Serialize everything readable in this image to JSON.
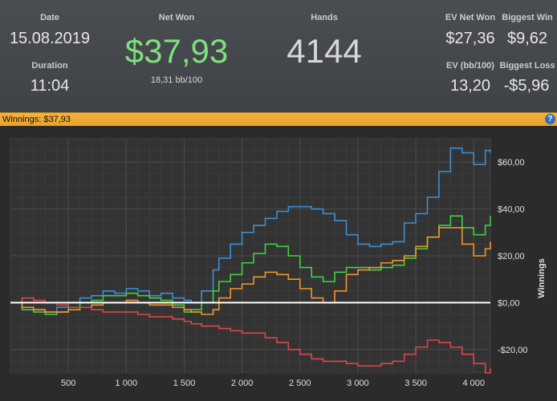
{
  "header": {
    "date_label": "Date",
    "date_value": "15.08.2019",
    "duration_label": "Duration",
    "duration_value": "11:04",
    "net_won_label": "Net Won",
    "net_won_value": "$37,93",
    "bb_rate": "18,31 bb/100",
    "hands_label": "Hands",
    "hands_value": "4144",
    "ev_net_won_label": "EV Net Won",
    "ev_net_won_value": "$27,36",
    "biggest_win_label": "Biggest Win",
    "biggest_win_value": "$9,62",
    "ev_bb_label": "EV (bb/100)",
    "ev_bb_value": "13,20",
    "biggest_loss_label": "Biggest Loss",
    "biggest_loss_value": "-$5,96"
  },
  "bar": {
    "text": "Winnings: $37,93",
    "help": "?"
  },
  "colors": {
    "blue": "#3b8fd6",
    "green": "#3fd33f",
    "orange": "#f0962a",
    "red": "#e04646",
    "zero": "#ffffff",
    "accent": "#f5b340"
  },
  "chart_data": {
    "type": "line",
    "xlim": [
      0,
      4144
    ],
    "ylim": [
      -30,
      70
    ],
    "xticks": [
      500,
      1000,
      1500,
      2000,
      2500,
      3000,
      3500,
      4000
    ],
    "xtick_labels": [
      "500",
      "1 000",
      "1 500",
      "2 000",
      "2 500",
      "3 000",
      "3 500",
      "4 000"
    ],
    "yticks": [
      -20,
      0,
      20,
      40,
      60
    ],
    "ytick_labels": [
      "-$20,00",
      "$0,00",
      "$20,00",
      "$40,00",
      "$60,00"
    ],
    "ylabel": "Winnings",
    "grid": true,
    "series": [
      {
        "color_key": "blue",
        "x": [
          0,
          100,
          200,
          300,
          400,
          500,
          600,
          700,
          800,
          900,
          1000,
          1100,
          1200,
          1300,
          1400,
          1500,
          1560,
          1650,
          1750,
          1800,
          1900,
          2000,
          2100,
          2200,
          2300,
          2400,
          2500,
          2600,
          2700,
          2800,
          2900,
          3000,
          3100,
          3200,
          3300,
          3400,
          3500,
          3600,
          3700,
          3800,
          3900,
          4000,
          4100,
          4144
        ],
        "y": [
          0,
          -2,
          -3,
          -4,
          -2,
          0,
          2,
          3,
          5,
          4,
          6,
          5,
          3,
          4,
          2,
          1,
          0,
          5,
          14,
          19,
          25,
          30,
          33,
          36,
          39,
          41,
          41,
          40,
          38,
          35,
          29,
          25,
          24,
          25,
          26,
          34,
          38,
          45,
          56,
          66,
          64,
          59,
          65,
          64
        ]
      },
      {
        "color_key": "green",
        "x": [
          0,
          100,
          200,
          300,
          400,
          500,
          600,
          700,
          800,
          900,
          1000,
          1100,
          1200,
          1300,
          1400,
          1500,
          1560,
          1650,
          1750,
          1800,
          1900,
          2000,
          2100,
          2200,
          2300,
          2400,
          2500,
          2600,
          2700,
          2800,
          2900,
          3000,
          3100,
          3200,
          3300,
          3400,
          3500,
          3600,
          3700,
          3800,
          3900,
          4000,
          4100,
          4144
        ],
        "y": [
          0,
          -3,
          -4,
          -5,
          -4,
          -2,
          0,
          1,
          3,
          3,
          4,
          3,
          2,
          1,
          -1,
          -4,
          -3,
          0,
          5,
          9,
          12,
          17,
          21,
          25,
          24,
          20,
          15,
          11,
          9,
          13,
          15,
          15,
          14,
          15,
          16,
          19,
          23,
          28,
          33,
          37,
          32,
          29,
          33,
          37
        ]
      },
      {
        "color_key": "orange",
        "x": [
          0,
          100,
          200,
          300,
          400,
          500,
          600,
          700,
          800,
          900,
          1000,
          1100,
          1200,
          1300,
          1400,
          1500,
          1560,
          1650,
          1750,
          1800,
          1900,
          2000,
          2100,
          2200,
          2300,
          2400,
          2500,
          2600,
          2700,
          2800,
          2900,
          3000,
          3100,
          3200,
          3300,
          3400,
          3500,
          3600,
          3700,
          3800,
          3900,
          4000,
          4100,
          4144
        ],
        "y": [
          0,
          -2,
          -3,
          -4,
          -4,
          -3,
          -2,
          -1,
          0,
          0,
          1,
          0,
          -1,
          -1,
          -2,
          -3,
          -4,
          -5,
          -3,
          2,
          6,
          8,
          11,
          13,
          12,
          10,
          6,
          2,
          0,
          5,
          12,
          14,
          15,
          17,
          18,
          20,
          24,
          28,
          32,
          32,
          25,
          20,
          23,
          26
        ]
      },
      {
        "color_key": "red",
        "x": [
          0,
          100,
          200,
          300,
          400,
          500,
          600,
          700,
          800,
          900,
          1000,
          1100,
          1200,
          1300,
          1400,
          1500,
          1560,
          1650,
          1750,
          1800,
          1900,
          2000,
          2100,
          2200,
          2300,
          2400,
          2500,
          2600,
          2700,
          2800,
          2900,
          3000,
          3100,
          3200,
          3300,
          3400,
          3500,
          3600,
          3700,
          3800,
          3900,
          4000,
          4100,
          4144
        ],
        "y": [
          0,
          2,
          1,
          0,
          -1,
          -2,
          -2,
          -3,
          -4,
          -4,
          -4,
          -5,
          -6,
          -6,
          -7,
          -8,
          -9,
          -10,
          -10,
          -11,
          -12,
          -13,
          -13,
          -15,
          -17,
          -20,
          -22,
          -24,
          -25,
          -25,
          -26,
          -27,
          -27,
          -26,
          -25,
          -22,
          -19,
          -16,
          -17,
          -19,
          -22,
          -26,
          -30,
          -28
        ]
      }
    ]
  }
}
